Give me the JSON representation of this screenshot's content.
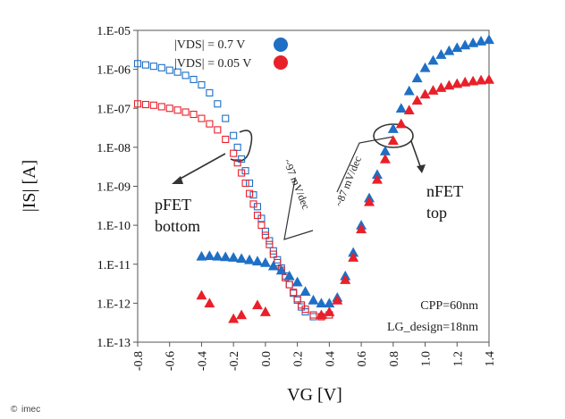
{
  "chart_data": {
    "type": "scatter",
    "xlabel": "VG [V]",
    "ylabel": "|IS| [A]",
    "xlim": [
      -0.8,
      1.4
    ],
    "ylim_log10": [
      -13,
      -5
    ],
    "x_ticks": [
      "-0.8",
      "-0.6",
      "-0.4",
      "-0.2",
      "0.0",
      "0.2",
      "0.4",
      "0.6",
      "0.8",
      "1.0",
      "1.2",
      "1.4"
    ],
    "y_ticks": [
      "1.E-05",
      "1.E-06",
      "1.E-07",
      "1.E-08",
      "1.E-09",
      "1.E-10",
      "1.E-11",
      "1.E-12",
      "1.E-13"
    ],
    "legend": [
      {
        "label": "|VDS| = 0.7 V",
        "color": "#1f6fc5"
      },
      {
        "label": "|VDS| = 0.05 V",
        "color": "#e8202a"
      }
    ],
    "series": [
      {
        "name": "pFET bottom |VDS| = 0.7 V",
        "marker": "open-square",
        "color": "#1f6fc5",
        "x": [
          -0.8,
          -0.75,
          -0.7,
          -0.65,
          -0.6,
          -0.55,
          -0.5,
          -0.45,
          -0.4,
          -0.35,
          -0.3,
          -0.25,
          -0.2,
          -0.175,
          -0.15,
          -0.125,
          -0.1,
          -0.075,
          -0.05,
          -0.025,
          0.0,
          0.025,
          0.05,
          0.075,
          0.1,
          0.125,
          0.15,
          0.175,
          0.2,
          0.225,
          0.25,
          0.3,
          0.35,
          0.4
        ],
        "y": [
          1.4e-06,
          1.3e-06,
          1.2e-06,
          1.1e-06,
          9.5e-07,
          8.5e-07,
          7e-07,
          5.5e-07,
          4e-07,
          2.5e-07,
          1.3e-07,
          5.5e-08,
          2e-08,
          1e-08,
          5e-09,
          2.5e-09,
          1.2e-09,
          6e-10,
          3e-10,
          1.5e-10,
          7e-11,
          4e-11,
          2.2e-11,
          1.3e-11,
          8e-12,
          5e-12,
          3e-12,
          1.8e-12,
          1.2e-12,
          8e-13,
          6e-13,
          4.5e-13,
          4.5e-13,
          5e-13
        ]
      },
      {
        "name": "pFET bottom |VDS| = 0.05 V",
        "marker": "open-square",
        "color": "#e8202a",
        "x": [
          -0.8,
          -0.75,
          -0.7,
          -0.65,
          -0.6,
          -0.55,
          -0.5,
          -0.45,
          -0.4,
          -0.35,
          -0.3,
          -0.25,
          -0.2,
          -0.175,
          -0.15,
          -0.125,
          -0.1,
          -0.075,
          -0.05,
          -0.025,
          0.0,
          0.025,
          0.05,
          0.075,
          0.1,
          0.125,
          0.15,
          0.175,
          0.2,
          0.225,
          0.25,
          0.3,
          0.35,
          0.4
        ],
        "y": [
          1.3e-07,
          1.25e-07,
          1.2e-07,
          1.1e-07,
          1e-07,
          9e-08,
          8e-08,
          7e-08,
          5.5e-08,
          4e-08,
          2.8e-08,
          1.6e-08,
          7e-09,
          4e-09,
          2.2e-09,
          1.2e-09,
          6.5e-10,
          3.5e-10,
          1.8e-10,
          1e-10,
          5.5e-11,
          3.2e-11,
          1.8e-11,
          1.1e-11,
          7e-12,
          4.5e-12,
          3e-12,
          1.9e-12,
          1.3e-12,
          9e-13,
          7e-13,
          5e-13,
          4.5e-13,
          5e-13
        ]
      },
      {
        "name": "nFET top |VDS| = 0.7 V",
        "marker": "filled-triangle",
        "color": "#1f6fc5",
        "x": [
          -0.4,
          -0.35,
          -0.3,
          -0.25,
          -0.2,
          -0.15,
          -0.1,
          -0.05,
          0.0,
          0.05,
          0.1,
          0.15,
          0.2,
          0.25,
          0.3,
          0.35,
          0.4,
          0.45,
          0.5,
          0.55,
          0.6,
          0.65,
          0.7,
          0.75,
          0.8,
          0.85,
          0.9,
          0.95,
          1.0,
          1.05,
          1.1,
          1.15,
          1.2,
          1.25,
          1.3,
          1.35,
          1.4
        ],
        "y": [
          1.6e-11,
          1.65e-11,
          1.6e-11,
          1.55e-11,
          1.5e-11,
          1.4e-11,
          1.3e-11,
          1.2e-11,
          1.1e-11,
          9e-12,
          7e-12,
          5e-12,
          3.5e-12,
          2e-12,
          1.2e-12,
          1e-12,
          1e-12,
          1.4e-12,
          5e-12,
          2e-11,
          1e-10,
          5e-10,
          2e-09,
          8e-09,
          3e-08,
          1e-07,
          2.8e-07,
          6e-07,
          1.1e-06,
          1.7e-06,
          2.4e-06,
          3e-06,
          3.6e-06,
          4.2e-06,
          4.8e-06,
          5.3e-06,
          5.8e-06
        ]
      },
      {
        "name": "nFET top |VDS| = 0.05 V",
        "marker": "filled-triangle",
        "color": "#e8202a",
        "x": [
          -0.4,
          -0.35,
          -0.2,
          -0.15,
          -0.05,
          0.0,
          0.35,
          0.4,
          0.45,
          0.5,
          0.55,
          0.6,
          0.65,
          0.7,
          0.75,
          0.8,
          0.85,
          0.9,
          0.95,
          1.0,
          1.05,
          1.1,
          1.15,
          1.2,
          1.25,
          1.3,
          1.35,
          1.4
        ],
        "y": [
          1.6e-12,
          1e-12,
          4e-13,
          5e-13,
          9e-13,
          6e-13,
          5e-13,
          6e-13,
          1.2e-12,
          4e-12,
          1.5e-11,
          8e-11,
          4e-10,
          1.5e-09,
          5e-09,
          1.5e-08,
          4e-08,
          9e-08,
          1.6e-07,
          2.3e-07,
          2.9e-07,
          3.4e-07,
          3.9e-07,
          4.3e-07,
          4.7e-07,
          5e-07,
          5.3e-07,
          5.5e-07
        ]
      }
    ],
    "annotations": {
      "pfet_label_line1": "pFET",
      "pfet_label_line2": "bottom",
      "nfet_label_line1": "nFET",
      "nfet_label_line2": "top",
      "slope_pfet": "~97 mV/dec",
      "slope_nfet": "~87 mV/dec",
      "cpp": "CPP=60nm",
      "lg": "LG_design=18nm"
    }
  },
  "footer": {
    "copyright_symbol": "©",
    "brand": "imec"
  }
}
